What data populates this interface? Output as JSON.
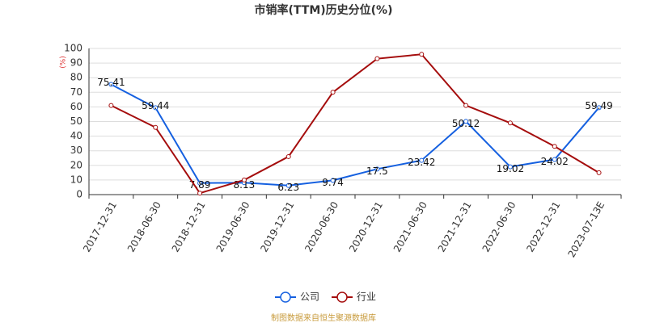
{
  "chart_data": {
    "type": "line",
    "title": "市销率(TTM)历史分位(%)",
    "y_label": "(%)",
    "categories": [
      "2017-12-31",
      "2018-06-30",
      "2018-12-31",
      "2019-06-30",
      "2019-12-31",
      "2020-06-30",
      "2020-12-31",
      "2021-06-30",
      "2021-12-31",
      "2022-06-30",
      "2022-12-31",
      "2023-07-13E"
    ],
    "series": [
      {
        "name": "公司",
        "color": "#1560e0",
        "values": [
          75.41,
          59.44,
          7.89,
          8.13,
          6.23,
          9.74,
          17.5,
          23.42,
          50.12,
          19.02,
          24.02,
          59.49
        ]
      },
      {
        "name": "行业",
        "color": "#a50d0d",
        "values": [
          61,
          46,
          1,
          10,
          26,
          70,
          93,
          96,
          61,
          49,
          33,
          15
        ]
      }
    ],
    "ylim": [
      0,
      100
    ],
    "yticks": [
      0,
      10,
      20,
      30,
      40,
      50,
      60,
      70,
      80,
      90,
      100
    ],
    "grid": true,
    "footnote": "制图数据来自恒生聚源数据库"
  }
}
